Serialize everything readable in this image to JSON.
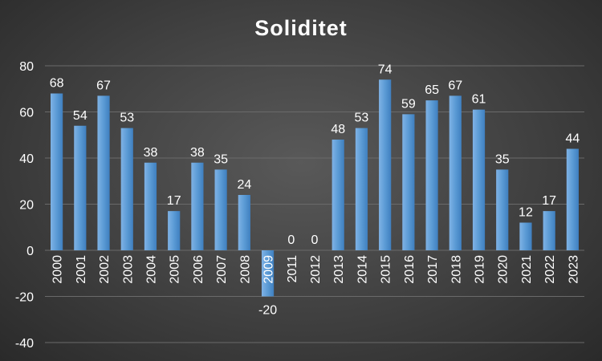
{
  "chart_data": {
    "type": "bar",
    "title": "Soliditet",
    "xlabel": "",
    "ylabel": "",
    "ylim": [
      -40,
      80
    ],
    "yticks": [
      -40,
      -20,
      0,
      20,
      40,
      60,
      80
    ],
    "grid": true,
    "legend": "none",
    "categories": [
      "2000",
      "2001",
      "2002",
      "2003",
      "2004",
      "2005",
      "2006",
      "2007",
      "2008",
      "2009",
      "2011",
      "2012",
      "2013",
      "2014",
      "2015",
      "2016",
      "2017",
      "2018",
      "2019",
      "2020",
      "2021",
      "2022",
      "2023"
    ],
    "values": [
      68,
      54,
      67,
      53,
      38,
      17,
      38,
      35,
      24,
      -20,
      0,
      0,
      48,
      53,
      74,
      59,
      65,
      67,
      61,
      35,
      12,
      17,
      44
    ],
    "colors": {
      "bar": "#5b9bd5",
      "grid": "#6a6a6a",
      "text": "#ffffff"
    }
  }
}
